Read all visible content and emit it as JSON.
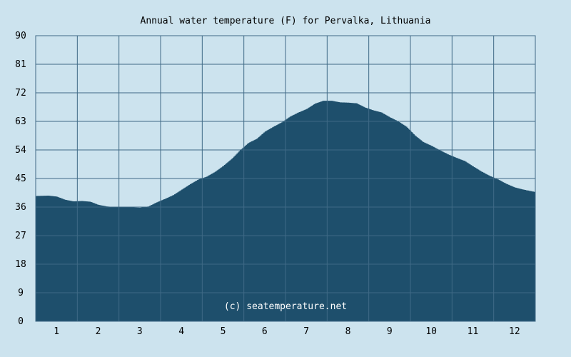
{
  "chart_data": {
    "type": "area",
    "title": "Annual water temperature (F) for Pervalka, Lithuania",
    "xlabel": "",
    "ylabel": "",
    "ylim": [
      0,
      90
    ],
    "yticks": [
      0,
      9,
      18,
      27,
      36,
      45,
      54,
      63,
      72,
      81,
      90
    ],
    "xlim": [
      0.5,
      12.5
    ],
    "xticks": [
      1,
      2,
      3,
      4,
      5,
      6,
      7,
      8,
      9,
      10,
      11,
      12
    ],
    "grid": true,
    "credit": "(c) seatemperature.net",
    "series": [
      {
        "x": [
          0.5,
          0.8,
          1.0,
          1.2,
          1.4,
          1.6,
          1.8,
          2.0,
          2.2,
          2.4,
          2.6,
          2.8,
          3.0,
          3.2,
          3.4,
          3.6,
          3.8,
          4.0,
          4.2,
          4.4,
          4.6,
          4.8,
          5.0,
          5.2,
          5.4,
          5.6,
          5.8,
          6.0,
          6.2,
          6.4,
          6.6,
          6.8,
          7.0,
          7.2,
          7.4,
          7.6,
          7.8,
          8.0,
          8.2,
          8.4,
          8.6,
          8.8,
          9.0,
          9.2,
          9.4,
          9.6,
          9.8,
          10.0,
          10.2,
          10.4,
          10.6,
          10.8,
          11.0,
          11.2,
          11.4,
          11.6,
          11.8,
          12.0,
          12.2,
          12.5
        ],
        "values": [
          39.5,
          39.6,
          39.3,
          38.3,
          37.8,
          37.9,
          37.7,
          36.7,
          36.2,
          36.0,
          36.0,
          35.9,
          35.8,
          36.2,
          37.5,
          38.6,
          39.8,
          41.5,
          43.2,
          44.7,
          45.6,
          47.1,
          49.0,
          51.2,
          53.9,
          56.2,
          57.5,
          59.8,
          61.3,
          62.7,
          64.5,
          65.8,
          66.9,
          68.6,
          69.5,
          69.5,
          69.0,
          68.9,
          68.7,
          67.4,
          66.5,
          65.8,
          64.3,
          63.0,
          61.3,
          58.6,
          56.5,
          55.3,
          53.9,
          52.6,
          51.5,
          50.5,
          48.8,
          47.2,
          45.8,
          44.7,
          43.3,
          42.2,
          41.5,
          40.7
        ]
      }
    ],
    "colors": {
      "fill": "#1e4f6c",
      "grid": "#3f6a86",
      "plot_background": "#cce3ee",
      "page_background": "#cce3ee",
      "credit_text": "#ffffff"
    }
  }
}
